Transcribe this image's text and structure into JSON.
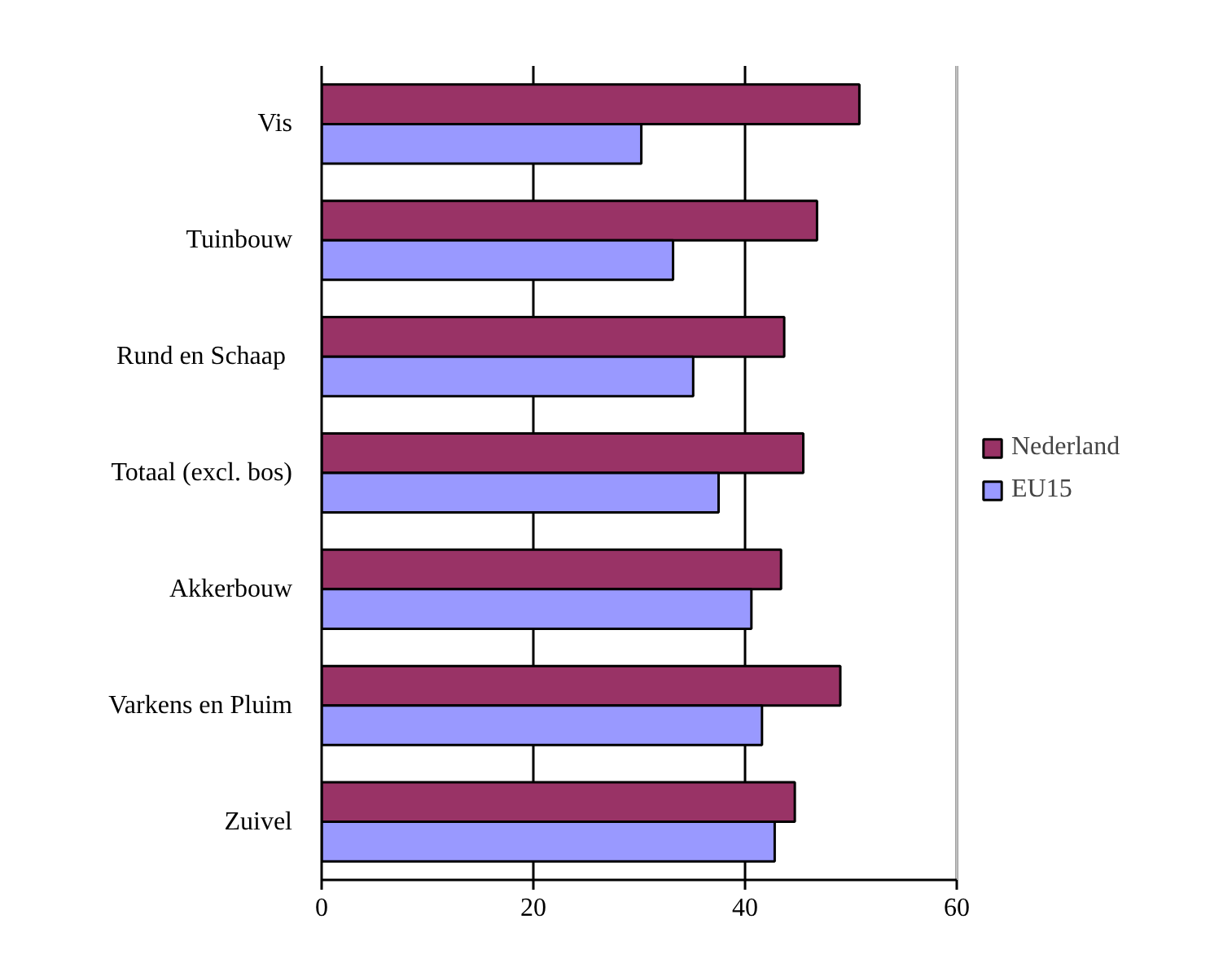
{
  "chart_data": {
    "type": "bar",
    "orientation": "horizontal",
    "categories": [
      "Vis",
      "Tuinbouw",
      "Rund en  Schaap",
      "Totaal (excl. bos)",
      "Akkerbouw",
      "Varkens en Pluim",
      "Zuivel"
    ],
    "series": [
      {
        "name": "Nederland",
        "color": "#993366",
        "values": [
          50.8,
          46.8,
          43.7,
          45.5,
          43.4,
          49.0,
          44.7
        ]
      },
      {
        "name": "EU15",
        "color": "#9999ff",
        "values": [
          30.2,
          33.2,
          35.1,
          37.5,
          40.6,
          41.6,
          42.8
        ]
      }
    ],
    "xlim": [
      0,
      60
    ],
    "xticks": [
      0,
      20,
      40,
      60
    ],
    "grid": "x",
    "legend": "right"
  }
}
